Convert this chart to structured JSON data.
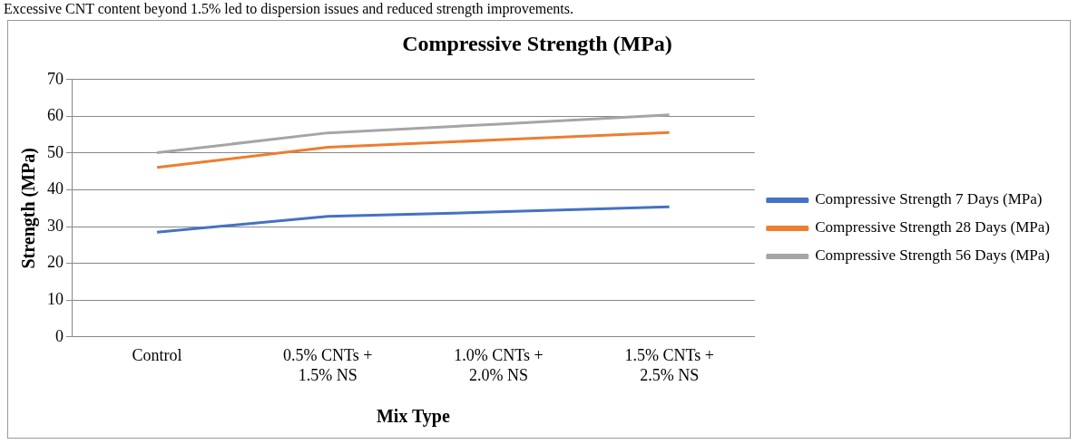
{
  "chart_data": {
    "type": "line",
    "title": "Compressive Strength (MPa)",
    "xlabel": "Mix Type",
    "ylabel": "Strength (MPa)",
    "annotations": [
      "Excessive CNT content beyond 1.5% led to dispersion issues and reduced strength improvements."
    ],
    "categories": [
      "Control",
      "0.5% CNTs + 1.5% NS",
      "1.0% CNTs + 2.0% NS",
      "1.5% CNTs + 2.5% NS"
    ],
    "series": [
      {
        "name": "Compressive Strength 7 Days (MPa)",
        "color": "#4472c4",
        "values": [
          28.5,
          32.8,
          34.0,
          35.4
        ]
      },
      {
        "name": "Compressive Strength 28 Days (MPa)",
        "color": "#ed7d31",
        "values": [
          46.1,
          51.6,
          53.6,
          55.6
        ]
      },
      {
        "name": "Compressive Strength 56 Days (MPa)",
        "color": "#a5a5a5",
        "values": [
          50.1,
          55.5,
          57.9,
          60.4
        ]
      }
    ],
    "ylim": [
      0,
      70
    ],
    "yticks": [
      0,
      10,
      20,
      30,
      40,
      50,
      60,
      70
    ],
    "grid": "y",
    "legend": "right",
    "marker": "none"
  }
}
